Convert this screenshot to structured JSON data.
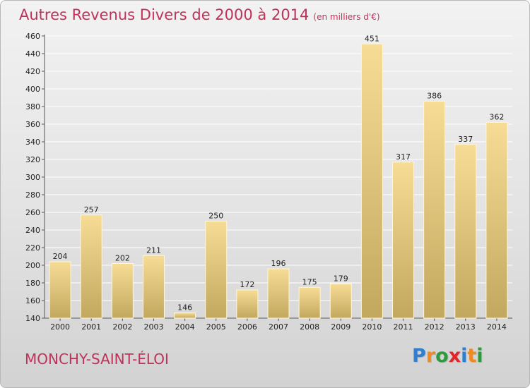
{
  "header": {
    "title": "Autres Revenus Divers de 2000 à 2014",
    "unit": "(en milliers d'€)"
  },
  "footer": {
    "commune": "MONCHY-SAINT-ÉLOI",
    "logo_letters": [
      {
        "ch": "P",
        "color": "#2f7fd0"
      },
      {
        "ch": "r",
        "color": "#f08a1c"
      },
      {
        "ch": "o",
        "color": "#2f9a3c"
      },
      {
        "ch": "x",
        "color": "#e0262b"
      },
      {
        "ch": "i",
        "color": "#2f7fd0"
      },
      {
        "ch": "t",
        "color": "#f08a1c"
      },
      {
        "ch": "i",
        "color": "#2f9a3c"
      }
    ]
  },
  "colors": {
    "title": "#c0325a",
    "bar_top": "#f7dc95",
    "bar_bottom": "#c2a85f",
    "grid": "#ffffff"
  },
  "chart_data": {
    "type": "bar",
    "title": "Autres Revenus Divers de 2000 à 2014",
    "unit": "(en milliers d'€)",
    "categories": [
      "2000",
      "2001",
      "2002",
      "2003",
      "2004",
      "2005",
      "2006",
      "2007",
      "2008",
      "2009",
      "2010",
      "2011",
      "2012",
      "2013",
      "2014"
    ],
    "values": [
      204,
      257,
      202,
      211,
      146,
      250,
      172,
      196,
      175,
      179,
      451,
      317,
      386,
      337,
      362
    ],
    "ylim": [
      140,
      460
    ],
    "yticks": [
      140,
      160,
      180,
      200,
      220,
      240,
      260,
      280,
      300,
      320,
      340,
      360,
      380,
      400,
      420,
      440,
      460
    ],
    "grid": true,
    "legend": "none"
  }
}
